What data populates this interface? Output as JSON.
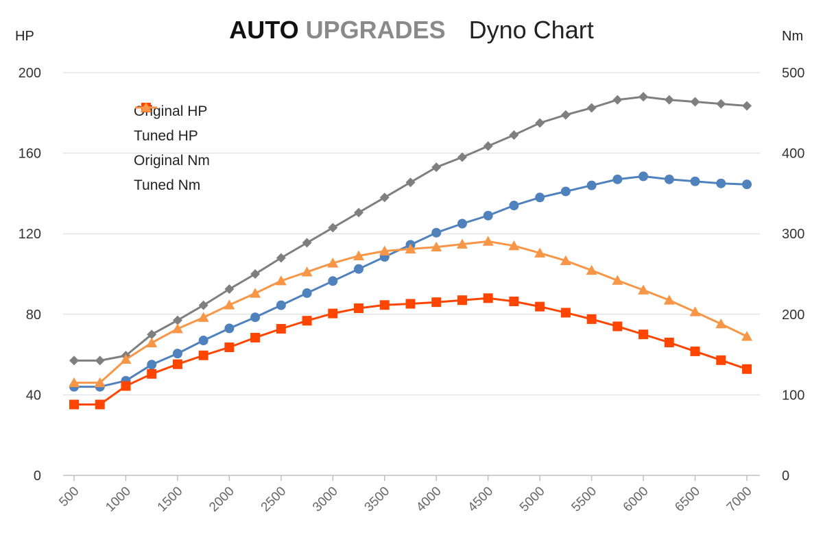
{
  "header": {
    "brand_part1": "AUTO",
    "brand_part2": "UPGRADES",
    "title": "Dyno Chart"
  },
  "chart_data": {
    "type": "line",
    "title": "Dyno Chart",
    "y_left_unit": "HP",
    "y_right_unit": "Nm",
    "x": [
      500,
      750,
      1000,
      1250,
      1500,
      1750,
      2000,
      2250,
      2500,
      2750,
      3000,
      3250,
      3500,
      3750,
      4000,
      4250,
      4500,
      4750,
      5000,
      5250,
      5500,
      5750,
      6000,
      6250,
      6500,
      6750,
      7000
    ],
    "x_ticks": [
      500,
      1000,
      1500,
      2000,
      2500,
      3000,
      3500,
      4000,
      4500,
      5000,
      5500,
      6000,
      6500,
      7000
    ],
    "y_left_ticks": [
      0,
      40,
      80,
      120,
      160,
      200
    ],
    "y_right_ticks": [
      0,
      100,
      200,
      300,
      400,
      500
    ],
    "ylim_left": [
      0,
      200
    ],
    "ylim_right": [
      0,
      500
    ],
    "xlim": [
      500,
      7000
    ],
    "grid": true,
    "legend_position": "top-left",
    "series": [
      {
        "name": "Original HP",
        "axis": "left",
        "color": "#4f81bd",
        "marker": "circle",
        "values": [
          44,
          44,
          47,
          55,
          60.5,
          67,
          73,
          78.5,
          84.5,
          90.5,
          96.5,
          102.5,
          108.5,
          114.5,
          120.5,
          125,
          129,
          134,
          138,
          141,
          144,
          147,
          148.5,
          147,
          146,
          145,
          144.5
        ]
      },
      {
        "name": "Tuned HP",
        "axis": "left",
        "color": "#7f7f7f",
        "marker": "diamond",
        "values": [
          57,
          57,
          59.5,
          70,
          77,
          84.5,
          92.5,
          100,
          108,
          115.5,
          123,
          130.5,
          138,
          145.5,
          153,
          158,
          163.5,
          169,
          175,
          179,
          182.5,
          186.5,
          188,
          186.5,
          185.5,
          184.5,
          183.5
        ]
      },
      {
        "name": "Original Nm",
        "axis": "right",
        "color": "#ff4500",
        "marker": "square",
        "values": [
          88,
          88,
          111,
          126,
          138,
          149,
          159,
          171,
          182,
          192,
          201,
          207.5,
          211.5,
          213,
          215,
          217.5,
          220,
          216,
          209.5,
          202,
          194,
          185,
          175,
          165,
          154,
          143,
          132
        ]
      },
      {
        "name": "Tuned Nm",
        "axis": "right",
        "color": "#f79646",
        "marker": "triangle",
        "values": [
          115,
          115,
          144,
          164.5,
          182,
          196,
          211.5,
          226,
          241.5,
          252.5,
          263.5,
          272.5,
          278.5,
          281,
          283.5,
          287,
          290.5,
          285,
          276,
          266.5,
          254.5,
          242,
          230,
          217.5,
          203,
          188,
          172.5
        ]
      }
    ]
  }
}
